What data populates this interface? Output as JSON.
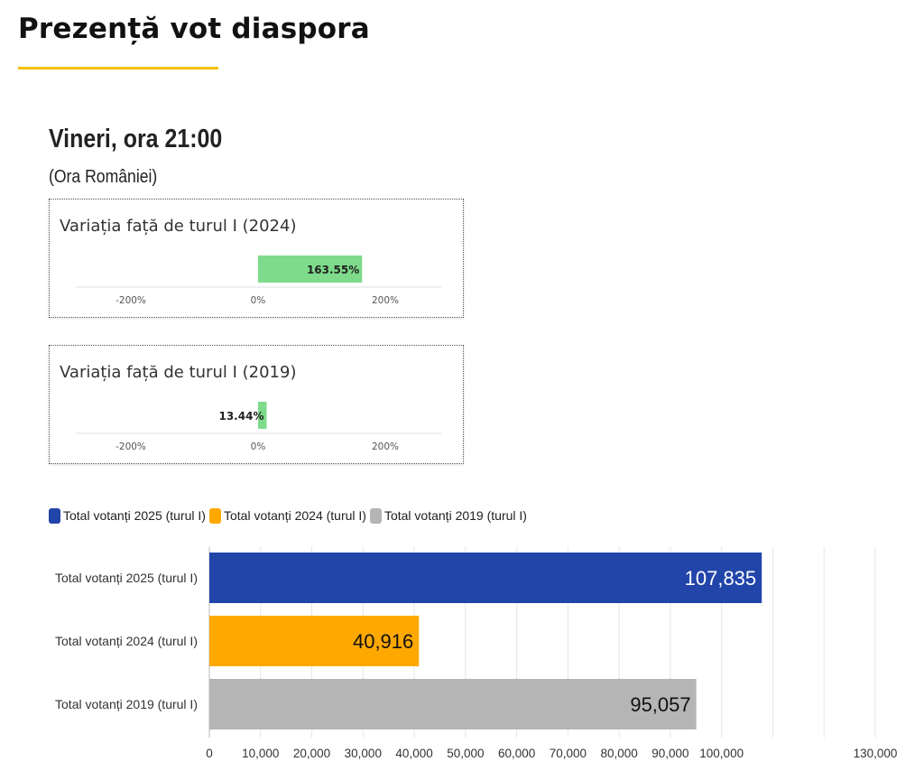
{
  "page": {
    "title": "Prezență vot diaspora",
    "accent_color": "#f5c000"
  },
  "snapshot": {
    "title": "Vineri, ora 21:00",
    "subtitle": "(Ora României)"
  },
  "variation_cards": [
    {
      "title": "Variația față de turul I (2024)",
      "value": 163.55,
      "value_label": "163.55%",
      "bar_color": "#7ddb8b"
    },
    {
      "title": "Variația față de turul I (2019)",
      "value": 13.44,
      "value_label": "13.44%",
      "bar_color": "#7ddb8b"
    }
  ],
  "variation_axis": {
    "domain": [
      -300,
      300
    ],
    "ticks": [
      -200,
      0,
      200
    ],
    "tick_labels": [
      "-200%",
      "0%",
      "200%"
    ]
  },
  "chart_data": [
    {
      "type": "bar",
      "orientation": "horizontal",
      "title": "Variația față de turul I (2024)",
      "categories": [
        ""
      ],
      "values": [
        163.55
      ],
      "value_labels": [
        "163.55%"
      ],
      "xlim": [
        -300,
        300
      ],
      "x_ticks": [
        -200,
        0,
        200
      ],
      "x_tick_labels": [
        "-200%",
        "0%",
        "200%"
      ]
    },
    {
      "type": "bar",
      "orientation": "horizontal",
      "title": "Variația față de turul I (2019)",
      "categories": [
        ""
      ],
      "values": [
        13.44
      ],
      "value_labels": [
        "13.44%"
      ],
      "xlim": [
        -300,
        300
      ],
      "x_ticks": [
        -200,
        0,
        200
      ],
      "x_tick_labels": [
        "-200%",
        "0%",
        "200%"
      ]
    },
    {
      "type": "bar",
      "orientation": "horizontal",
      "categories": [
        "Total votanți 2025 (turul I)",
        "Total votanți 2024 (turul I)",
        "Total votanți 2019 (turul I)"
      ],
      "values": [
        107835,
        40916,
        95057
      ],
      "value_labels": [
        "107,835",
        "40,916",
        "95,057"
      ],
      "colors": [
        "#2245aa",
        "#ffa800",
        "#b5b5b5"
      ],
      "legend": {
        "placement": "top-left",
        "entries": [
          "Total votanți 2025 (turul I)",
          "Total votanți 2024 (turul I)",
          "Total votanți 2019 (turul I)"
        ]
      },
      "xlim": [
        0,
        130000
      ],
      "x_ticks": [
        0,
        10000,
        20000,
        30000,
        40000,
        50000,
        60000,
        70000,
        80000,
        90000,
        100000,
        130000
      ],
      "x_tick_labels": [
        "0",
        "10,000",
        "20,000",
        "30,000",
        "40,000",
        "50,000",
        "60,000",
        "70,000",
        "80,000",
        "90,000",
        "100,000",
        "130,000"
      ],
      "grid": true
    }
  ]
}
